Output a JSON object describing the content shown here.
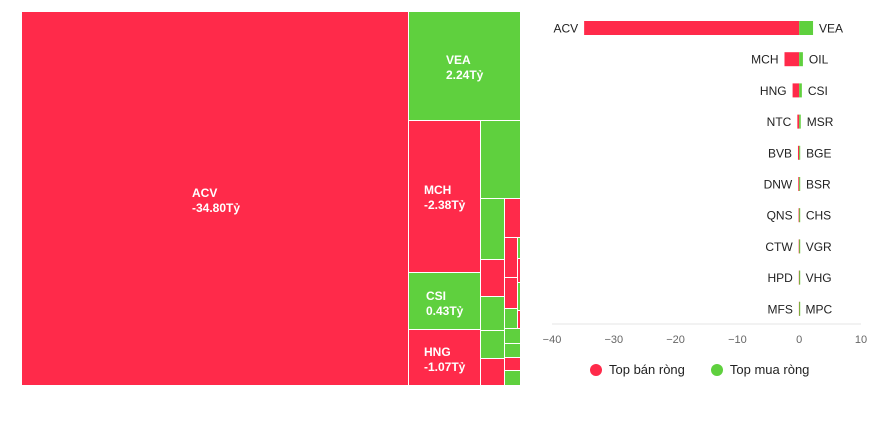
{
  "colors": {
    "sell": "#ff2a4a",
    "buy": "#5fd03e",
    "axis": "#bbbbbb",
    "text": "#222222"
  },
  "treemap": [
    {
      "ticker": "ACV",
      "value_label": "-34.80Tỷ",
      "side": "sell"
    },
    {
      "ticker": "VEA",
      "value_label": "2.24Tỷ",
      "side": "buy"
    },
    {
      "ticker": "MCH",
      "value_label": "-2.38Tỷ",
      "side": "sell"
    },
    {
      "ticker": "CSI",
      "value_label": "0.43Tỷ",
      "side": "buy"
    },
    {
      "ticker": "HNG",
      "value_label": "-1.07Tỷ",
      "side": "sell"
    }
  ],
  "legend": {
    "sell_label": "Top bán ròng",
    "buy_label": "Top mua ròng"
  },
  "chart_data": {
    "type": "bar",
    "orientation": "horizontal-diverging",
    "sell_tickers": [
      "ACV",
      "MCH",
      "HNG",
      "NTC",
      "BVB",
      "DNW",
      "QNS",
      "CTW",
      "HPD",
      "MFS"
    ],
    "sell_values": [
      -34.8,
      -2.38,
      -1.07,
      -0.3,
      -0.2,
      -0.15,
      -0.1,
      -0.08,
      -0.06,
      -0.05
    ],
    "buy_tickers": [
      "VEA",
      "OIL",
      "CSI",
      "MSR",
      "BGE",
      "BSR",
      "CHS",
      "VGR",
      "VHG",
      "MPC"
    ],
    "buy_values": [
      2.24,
      0.6,
      0.43,
      0.25,
      0.15,
      0.12,
      0.1,
      0.08,
      0.06,
      0.05
    ],
    "xlim": [
      -40,
      10
    ],
    "xticks": [
      -40,
      -30,
      -20,
      -10,
      0,
      10
    ],
    "legend_position": "bottom",
    "grid": false
  }
}
